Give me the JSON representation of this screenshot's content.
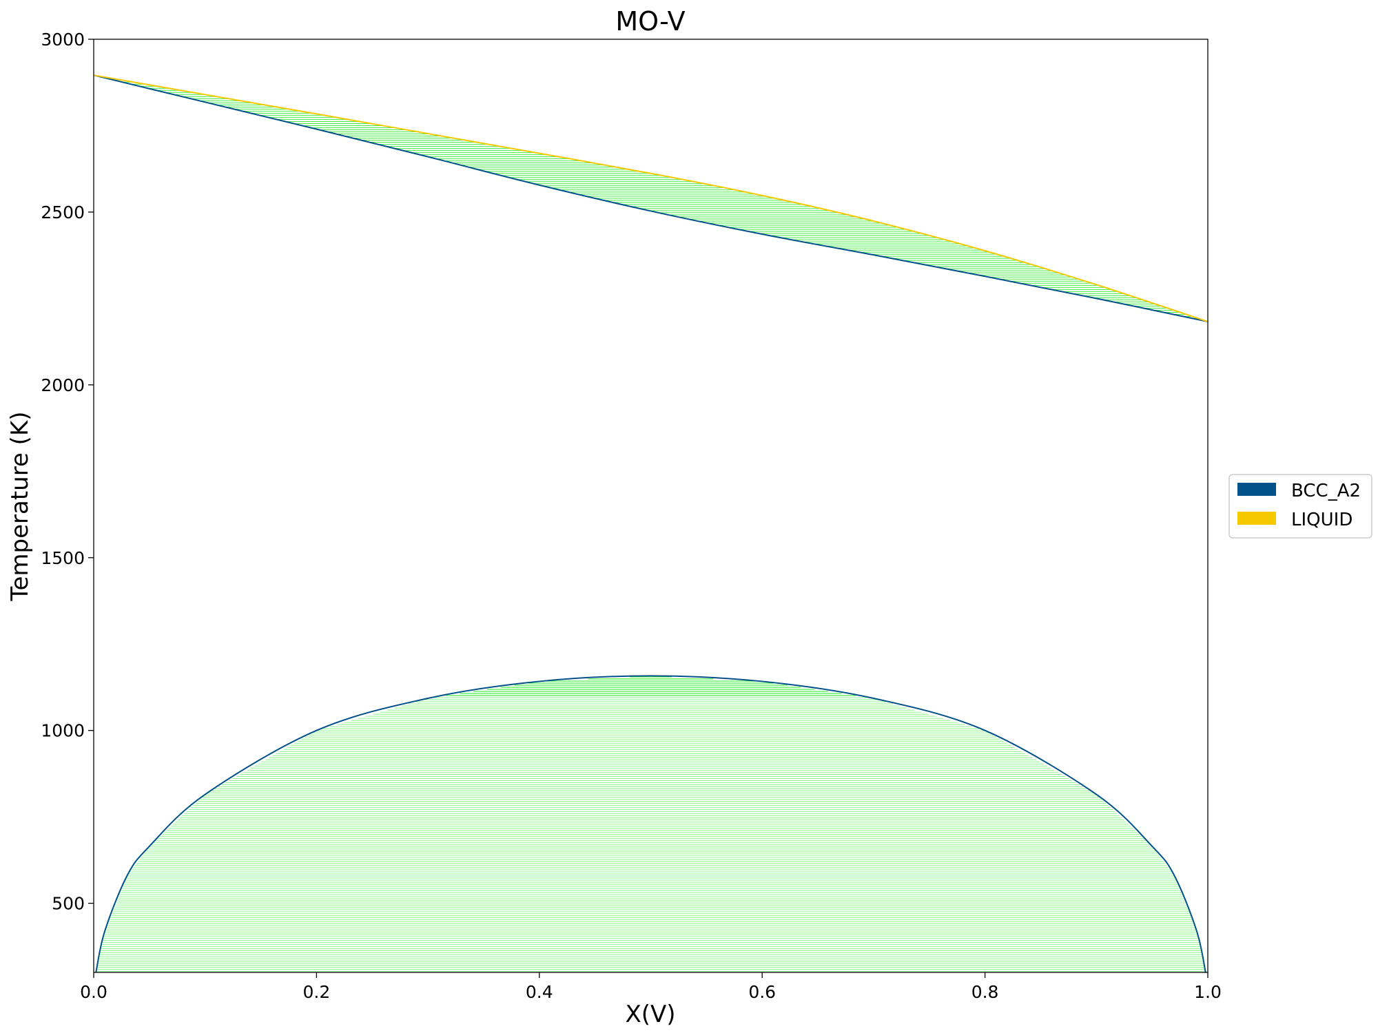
{
  "chart_data": {
    "type": "phase-diagram",
    "title": "MO-V",
    "xlabel": "X(V)",
    "ylabel": "Temperature (K)",
    "xlim": [
      0.0,
      1.0
    ],
    "ylim": [
      300,
      3000
    ],
    "xticks": [
      "0.0",
      "0.2",
      "0.4",
      "0.6",
      "0.8",
      "1.0"
    ],
    "yticks": [
      "500",
      "1000",
      "1500",
      "2000",
      "2500",
      "3000"
    ],
    "grid": false,
    "legend": {
      "placement": "right",
      "entries": [
        {
          "name": "BCC_A2",
          "color": "#00508a"
        },
        {
          "name": "LIQUID",
          "color": "#f5c800"
        }
      ]
    },
    "tieline_color": "#00e600",
    "series": [
      {
        "name": "solidus",
        "phase": "BCC_A2",
        "x": [
          0.0,
          0.1,
          0.2,
          0.3,
          0.4,
          0.5,
          0.6,
          0.7,
          0.8,
          0.9,
          1.0
        ],
        "y": [
          2896,
          2818,
          2740,
          2660,
          2578,
          2503,
          2436,
          2376,
          2314,
          2250,
          2183
        ]
      },
      {
        "name": "liquidus",
        "phase": "LIQUID",
        "x": [
          0.0,
          0.1,
          0.2,
          0.3,
          0.4,
          0.5,
          0.6,
          0.7,
          0.8,
          0.9,
          1.0
        ],
        "y": [
          2896,
          2840,
          2784,
          2727,
          2670,
          2612,
          2548,
          2474,
          2388,
          2290,
          2183
        ]
      },
      {
        "name": "miscibility-gap",
        "phase": "BCC_A2",
        "x": [
          0.002,
          0.01,
          0.03,
          0.05,
          0.1,
          0.2,
          0.3,
          0.4,
          0.5,
          0.6,
          0.7,
          0.8,
          0.9,
          0.95,
          0.97,
          0.99,
          0.998
        ],
        "y": [
          300,
          420,
          580,
          665,
          815,
          1000,
          1093,
          1142,
          1158,
          1142,
          1093,
          1000,
          815,
          665,
          580,
          420,
          300
        ]
      }
    ]
  }
}
